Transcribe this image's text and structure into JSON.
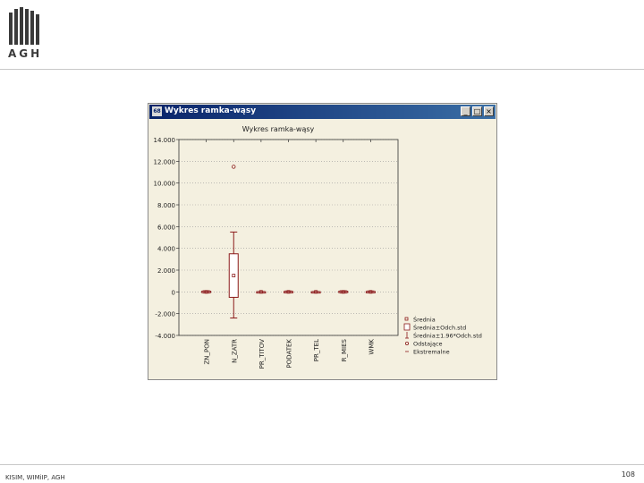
{
  "branding": {
    "logo_text": "AGH"
  },
  "footer": {
    "left": "KISIM, WIMiIP, AGH",
    "page_number": "108"
  },
  "window": {
    "title": "Wykres ramka-wąsy",
    "icon_text": "68",
    "buttons": {
      "minimize": "_",
      "maximize": "□",
      "close": "×"
    }
  },
  "chart_data": {
    "type": "boxplot",
    "title": "Wykres ramka-wąsy",
    "ylim": [
      -4000,
      14000
    ],
    "y_ticks": [
      "14.000",
      "12.000",
      "10.000",
      "8.000",
      "6.000",
      "4.000",
      "2.000",
      "0",
      "-2.000",
      "-4.000"
    ],
    "categories": [
      "ZN_PON",
      "N_ZATR",
      "PR_TITOV",
      "PODATEK",
      "PR_TEL",
      "R_MIES",
      "WMK"
    ],
    "series": [
      {
        "mean": 0,
        "box_low": -60,
        "box_high": 60,
        "whisker_low": -100,
        "whisker_high": 100,
        "outliers": []
      },
      {
        "mean": 1500,
        "box_low": -500,
        "box_high": 3500,
        "whisker_low": -2400,
        "whisker_high": 5500,
        "outliers": [
          11500
        ]
      },
      {
        "mean": 0,
        "box_low": -20,
        "box_high": 20,
        "whisker_low": -40,
        "whisker_high": 40,
        "outliers": []
      },
      {
        "mean": 0,
        "box_low": -40,
        "box_high": 40,
        "whisker_low": -80,
        "whisker_high": 80,
        "outliers": []
      },
      {
        "mean": 0,
        "box_low": -20,
        "box_high": 20,
        "whisker_low": -40,
        "whisker_high": 40,
        "outliers": []
      },
      {
        "mean": 0,
        "box_low": -60,
        "box_high": 60,
        "whisker_low": -100,
        "whisker_high": 100,
        "outliers": []
      },
      {
        "mean": 0,
        "box_low": -40,
        "box_high": 40,
        "whisker_low": -80,
        "whisker_high": 80,
        "outliers": []
      }
    ],
    "legend": [
      "Średnia",
      "Średnia±Odch.std",
      "Średnia±1.96*Odch.std",
      "Odstające",
      "Ekstremalne"
    ],
    "legend_position": "bottom-right",
    "grid": true,
    "color": "#8b1a1a"
  }
}
